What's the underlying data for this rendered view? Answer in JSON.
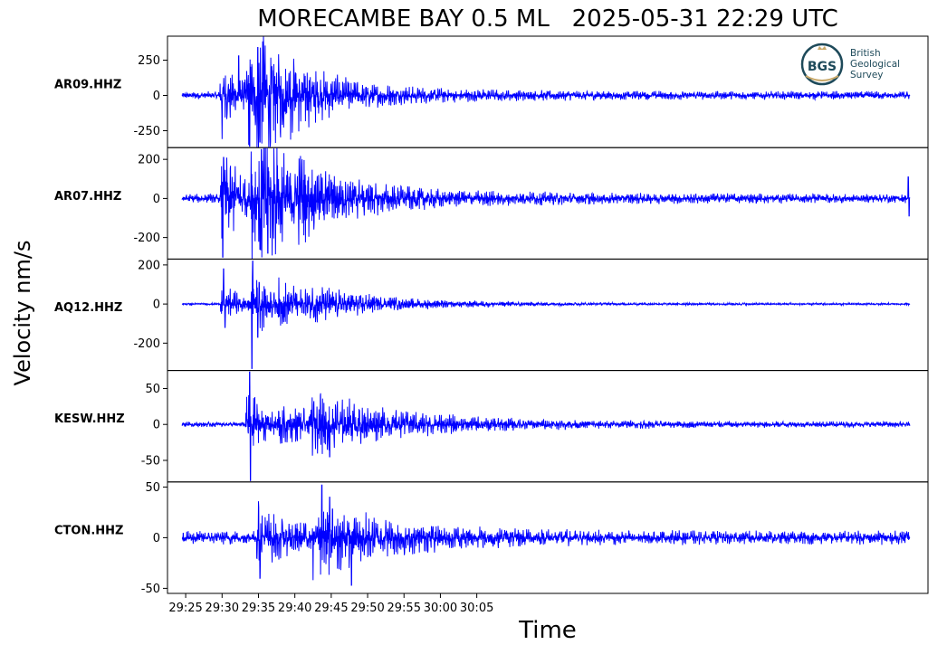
{
  "chart_data": {
    "type": "line",
    "title": "MORECAMBE BAY 0.5 ML   2025-05-31 22:29 UTC",
    "xlabel": "Time",
    "ylabel": "Velocity nm/s",
    "x_ticks": [
      "29:25",
      "29:30",
      "29:35",
      "29:40",
      "29:45",
      "29:50",
      "29:55",
      "30:00",
      "30:05"
    ],
    "x_range_seconds": [
      22.5,
      127
    ],
    "trace_range_seconds": [
      24.5,
      124.5
    ],
    "line_color": "#0000ff",
    "logo": {
      "text": "BGS",
      "lines": [
        "British",
        "Geological",
        "Survey"
      ],
      "accent": "#1e4a5a"
    },
    "panels": [
      {
        "station": "AR09.HHZ",
        "ylim": [
          -370,
          420
        ],
        "yticks": [
          250,
          0,
          -250
        ],
        "ytick_labels": [
          "250",
          "0",
          "-250"
        ],
        "bursts": [
          {
            "t": 30.0,
            "amp": 200,
            "decay": 6
          },
          {
            "t": 33.5,
            "amp": 240,
            "decay": 4
          },
          {
            "t": 35.0,
            "amp": 300,
            "decay": 5
          },
          {
            "t": 39.5,
            "amp": 90,
            "decay": 15
          }
        ],
        "noise": 30,
        "peaks": [
          {
            "t": 35.6,
            "v": 380
          },
          {
            "t": 33.8,
            "v": -360
          },
          {
            "t": 34.9,
            "v": 340
          },
          {
            "t": 30.0,
            "v": -310
          },
          {
            "t": 35.2,
            "v": -330
          },
          {
            "t": 32.3,
            "v": 280
          }
        ],
        "samples": [
          [
            24.5,
            20
          ],
          [
            25.0,
            -15
          ],
          [
            26.0,
            12
          ],
          [
            27.0,
            -20
          ],
          [
            28.0,
            18
          ],
          [
            29.0,
            -22
          ],
          [
            30.0,
            120
          ],
          [
            31.0,
            -160
          ],
          [
            32.0,
            170
          ],
          [
            33.0,
            -200
          ],
          [
            34.0,
            240
          ],
          [
            35.0,
            -260
          ],
          [
            36.0,
            200
          ],
          [
            37.0,
            -150
          ],
          [
            38.0,
            120
          ],
          [
            40.0,
            -100
          ],
          [
            42.0,
            90
          ],
          [
            44.0,
            -70
          ],
          [
            46.0,
            60
          ],
          [
            48.0,
            -50
          ],
          [
            50.0,
            45
          ],
          [
            52.0,
            -40
          ],
          [
            55.0,
            40
          ],
          [
            58.0,
            -38
          ],
          [
            60.0,
            35
          ],
          [
            62.0,
            -32
          ],
          [
            64.0,
            30
          ],
          [
            121.0,
            35
          ],
          [
            124.5,
            -25
          ]
        ]
      },
      {
        "station": "AR07.HHZ",
        "ylim": [
          -310,
          260
        ],
        "yticks": [
          200,
          0,
          -200
        ],
        "ytick_labels": [
          "200",
          "0",
          "-200"
        ],
        "bursts": [
          {
            "t": 30.1,
            "amp": 230,
            "decay": 4
          },
          {
            "t": 34.2,
            "amp": 220,
            "decay": 6
          },
          {
            "t": 35.5,
            "amp": 180,
            "decay": 6
          },
          {
            "t": 40.0,
            "amp": 70,
            "decay": 18
          }
        ],
        "noise": 25,
        "peaks": [
          {
            "t": 30.1,
            "v": -300
          },
          {
            "t": 30.2,
            "v": 210
          },
          {
            "t": 35.4,
            "v": 250
          },
          {
            "t": 34.0,
            "v": 240
          },
          {
            "t": 36.3,
            "v": -280
          },
          {
            "t": 35.2,
            "v": -260
          },
          {
            "t": 124.3,
            "v": 110
          },
          {
            "t": 124.4,
            "v": -90
          }
        ],
        "samples": [
          [
            24.5,
            40
          ],
          [
            25.0,
            -20
          ],
          [
            26.0,
            15
          ],
          [
            28.0,
            -18
          ],
          [
            29.5,
            20
          ],
          [
            30.1,
            -300
          ],
          [
            31.0,
            120
          ],
          [
            32.0,
            -130
          ],
          [
            33.0,
            150
          ],
          [
            34.0,
            240
          ],
          [
            35.0,
            -200
          ],
          [
            36.0,
            160
          ],
          [
            37.0,
            -120
          ],
          [
            38.0,
            100
          ],
          [
            40.0,
            -80
          ],
          [
            42.0,
            60
          ],
          [
            45.0,
            -50
          ],
          [
            50.0,
            40
          ],
          [
            55.0,
            -35
          ],
          [
            60.0,
            30
          ],
          [
            65.0,
            -28
          ],
          [
            120.0,
            28
          ],
          [
            124.0,
            80
          ],
          [
            124.5,
            -70
          ]
        ]
      },
      {
        "station": "AQ12.HHZ",
        "ylim": [
          -340,
          230
        ],
        "yticks": [
          200,
          0,
          -200
        ],
        "ytick_labels": [
          "200",
          "0",
          "-200"
        ],
        "bursts": [
          {
            "t": 30.1,
            "amp": 90,
            "decay": 5
          },
          {
            "t": 34.3,
            "amp": 140,
            "decay": 4
          },
          {
            "t": 38.0,
            "amp": 60,
            "decay": 10
          },
          {
            "t": 42.0,
            "amp": 50,
            "decay": 12
          }
        ],
        "noise": 6,
        "peaks": [
          {
            "t": 34.1,
            "v": -330
          },
          {
            "t": 34.2,
            "v": 220
          },
          {
            "t": 30.2,
            "v": 180
          },
          {
            "t": 30.4,
            "v": -120
          },
          {
            "t": 35.1,
            "v": 110
          },
          {
            "t": 34.9,
            "v": -170
          }
        ],
        "samples": [
          [
            24.5,
            2
          ],
          [
            26.0,
            -4
          ],
          [
            28.0,
            3
          ],
          [
            29.9,
            -5
          ],
          [
            30.1,
            180
          ],
          [
            31.0,
            -80
          ],
          [
            32.0,
            70
          ],
          [
            33.0,
            -60
          ],
          [
            34.1,
            -330
          ],
          [
            35.0,
            110
          ],
          [
            36.0,
            -60
          ],
          [
            38.0,
            45
          ],
          [
            40.0,
            -40
          ],
          [
            42.0,
            50
          ],
          [
            44.0,
            -30
          ],
          [
            50.0,
            20
          ],
          [
            60.0,
            -15
          ],
          [
            80.0,
            10
          ],
          [
            100.0,
            -8
          ],
          [
            124.5,
            5
          ]
        ]
      },
      {
        "station": "KESW.HHZ",
        "ylim": [
          -80,
          75
        ],
        "yticks": [
          50,
          0,
          -50
        ],
        "ytick_labels": [
          "50",
          "0",
          "-50"
        ],
        "bursts": [
          {
            "t": 33.5,
            "amp": 45,
            "decay": 3
          },
          {
            "t": 38.0,
            "amp": 20,
            "decay": 20
          },
          {
            "t": 42.5,
            "amp": 28,
            "decay": 10
          }
        ],
        "noise": 4,
        "peaks": [
          {
            "t": 33.8,
            "v": 75
          },
          {
            "t": 33.9,
            "v": -78
          },
          {
            "t": 34.5,
            "v": 38
          },
          {
            "t": 43.5,
            "v": 40
          },
          {
            "t": 44.8,
            "v": -45
          },
          {
            "t": 47.5,
            "v": 36
          }
        ],
        "samples": [
          [
            24.5,
            -5
          ],
          [
            26.0,
            4
          ],
          [
            28.0,
            -6
          ],
          [
            30.0,
            8
          ],
          [
            32.0,
            -8
          ],
          [
            33.0,
            25
          ],
          [
            33.8,
            75
          ],
          [
            33.9,
            -78
          ],
          [
            35.0,
            30
          ],
          [
            37.0,
            -25
          ],
          [
            40.0,
            22
          ],
          [
            42.0,
            -28
          ],
          [
            43.5,
            40
          ],
          [
            45.0,
            -38
          ],
          [
            47.0,
            30
          ],
          [
            50.0,
            -18
          ],
          [
            55.0,
            12
          ],
          [
            60.0,
            -10
          ],
          [
            70.0,
            10
          ],
          [
            80.0,
            -12
          ],
          [
            90.0,
            14
          ],
          [
            100.0,
            -16
          ],
          [
            110.0,
            15
          ],
          [
            120.0,
            -12
          ],
          [
            124.5,
            5
          ]
        ]
      },
      {
        "station": "CTON.HHZ",
        "ylim": [
          -55,
          55
        ],
        "yticks": [
          50,
          0,
          -50
        ],
        "ytick_labels": [
          "50",
          "0",
          "-50"
        ],
        "bursts": [
          {
            "t": 35.0,
            "amp": 25,
            "decay": 6
          },
          {
            "t": 43.5,
            "amp": 28,
            "decay": 12
          }
        ],
        "noise": 7,
        "peaks": [
          {
            "t": 43.7,
            "v": 52
          },
          {
            "t": 47.8,
            "v": -47
          },
          {
            "t": 35.2,
            "v": -40
          },
          {
            "t": 35.0,
            "v": 36
          },
          {
            "t": 42.5,
            "v": -42
          },
          {
            "t": 44.8,
            "v": 40
          }
        ],
        "samples": [
          [
            24.5,
            5
          ],
          [
            26.0,
            -8
          ],
          [
            28.0,
            10
          ],
          [
            30.0,
            -10
          ],
          [
            32.0,
            8
          ],
          [
            34.0,
            -12
          ],
          [
            35.0,
            36
          ],
          [
            36.0,
            -28
          ],
          [
            38.0,
            20
          ],
          [
            40.0,
            -20
          ],
          [
            42.0,
            25
          ],
          [
            43.7,
            52
          ],
          [
            45.0,
            -35
          ],
          [
            47.8,
            -47
          ],
          [
            50.0,
            20
          ],
          [
            55.0,
            -15
          ],
          [
            60.0,
            14
          ],
          [
            70.0,
            -12
          ],
          [
            80.0,
            12
          ],
          [
            90.0,
            -10
          ],
          [
            100.0,
            10
          ],
          [
            110.0,
            -9
          ],
          [
            124.5,
            8
          ]
        ]
      }
    ]
  }
}
